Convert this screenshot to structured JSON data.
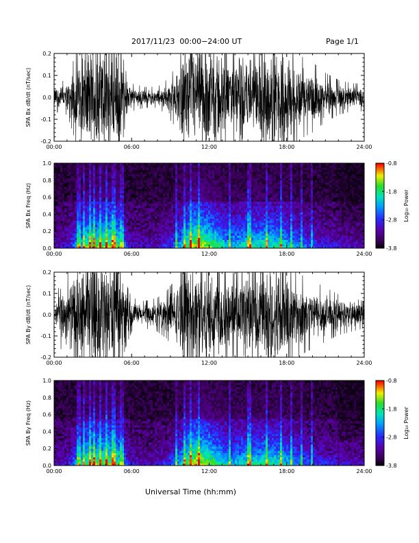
{
  "header": {
    "title": "2017/11/23  00:00−24:00 UT",
    "page": "Page 1/1"
  },
  "xlabel": "Universal Time (hh:mm)",
  "chart_data": [
    {
      "type": "line",
      "ylabel": "SPA Bx dB/dt (nT/sec)",
      "xlim_hours": [
        0,
        24
      ],
      "ylim": [
        -0.2,
        0.2
      ],
      "xticks": [
        "00:00",
        "06:00",
        "12:00",
        "18:00",
        "24:00"
      ],
      "yticks": [
        "-0.2",
        "-0.1",
        "0.0",
        "0.1",
        "0.2"
      ],
      "envelope": {
        "hour": [
          0,
          1,
          1.9,
          2.3,
          3,
          3.5,
          4.2,
          5,
          5.5,
          6,
          7,
          8,
          8.7,
          9.5,
          10,
          10.5,
          11,
          12,
          12.5,
          13,
          13.5,
          14,
          14.5,
          15,
          15.5,
          16,
          17,
          17.5,
          18,
          19,
          20,
          21,
          22,
          23,
          24
        ],
        "amplitude": [
          0.04,
          0.05,
          0.15,
          0.2,
          0.2,
          0.2,
          0.2,
          0.2,
          0.08,
          0.04,
          0.03,
          0.03,
          0.05,
          0.09,
          0.18,
          0.2,
          0.2,
          0.2,
          0.2,
          0.17,
          0.12,
          0.14,
          0.18,
          0.15,
          0.13,
          0.17,
          0.2,
          0.2,
          0.18,
          0.12,
          0.1,
          0.07,
          0.05,
          0.04,
          0.04
        ]
      }
    },
    {
      "type": "heatmap",
      "ylabel": "SPA Bx Freq (Hz)",
      "colorbar_label": "Log₁₀ Power",
      "colorbar_ticks": [
        "-0.8",
        "-1.8",
        "-2.8",
        "-3.8"
      ],
      "clim": [
        -3.8,
        -0.8
      ],
      "xlim_hours": [
        0,
        24
      ],
      "ylim": [
        0,
        1.0
      ],
      "xticks": [
        "00:00",
        "06:00",
        "12:00",
        "18:00",
        "24:00"
      ],
      "yticks": [
        "0.0",
        "0.2",
        "0.4",
        "0.6",
        "0.8",
        "1.0"
      ]
    },
    {
      "type": "line",
      "ylabel": "SPA By dB/dt (nT/sec)",
      "xlim_hours": [
        0,
        24
      ],
      "ylim": [
        -0.2,
        0.2
      ],
      "xticks": [
        "00:00",
        "06:00",
        "12:00",
        "18:00",
        "24:00"
      ],
      "yticks": [
        "-0.2",
        "-0.1",
        "0.0",
        "0.1",
        "0.2"
      ],
      "envelope": {
        "hour": [
          0,
          0.5,
          1,
          1.9,
          2.3,
          3,
          3.5,
          4.2,
          5,
          5.5,
          6,
          7,
          8,
          8.7,
          9.5,
          10,
          10.5,
          11,
          12,
          12.5,
          13,
          13.5,
          14,
          14.5,
          15,
          15.5,
          16,
          17,
          17.5,
          18,
          19,
          20,
          21,
          22,
          23,
          24
        ],
        "amplitude": [
          0.03,
          0.1,
          0.12,
          0.17,
          0.2,
          0.2,
          0.2,
          0.2,
          0.2,
          0.1,
          0.05,
          0.04,
          0.05,
          0.07,
          0.11,
          0.19,
          0.2,
          0.2,
          0.2,
          0.2,
          0.16,
          0.13,
          0.12,
          0.16,
          0.18,
          0.15,
          0.17,
          0.2,
          0.2,
          0.17,
          0.12,
          0.1,
          0.08,
          0.06,
          0.05,
          0.04
        ]
      }
    },
    {
      "type": "heatmap",
      "ylabel": "SPA By Freq (Hz)",
      "colorbar_label": "Log₁₀ Power",
      "colorbar_ticks": [
        "-0.8",
        "-1.8",
        "-2.8",
        "-3.8"
      ],
      "clim": [
        -3.8,
        -0.8
      ],
      "xlim_hours": [
        0,
        24
      ],
      "ylim": [
        0,
        1.0
      ],
      "xticks": [
        "00:00",
        "06:00",
        "12:00",
        "18:00",
        "24:00"
      ],
      "yticks": [
        "0.0",
        "0.2",
        "0.4",
        "0.6",
        "0.8",
        "1.0"
      ]
    }
  ]
}
